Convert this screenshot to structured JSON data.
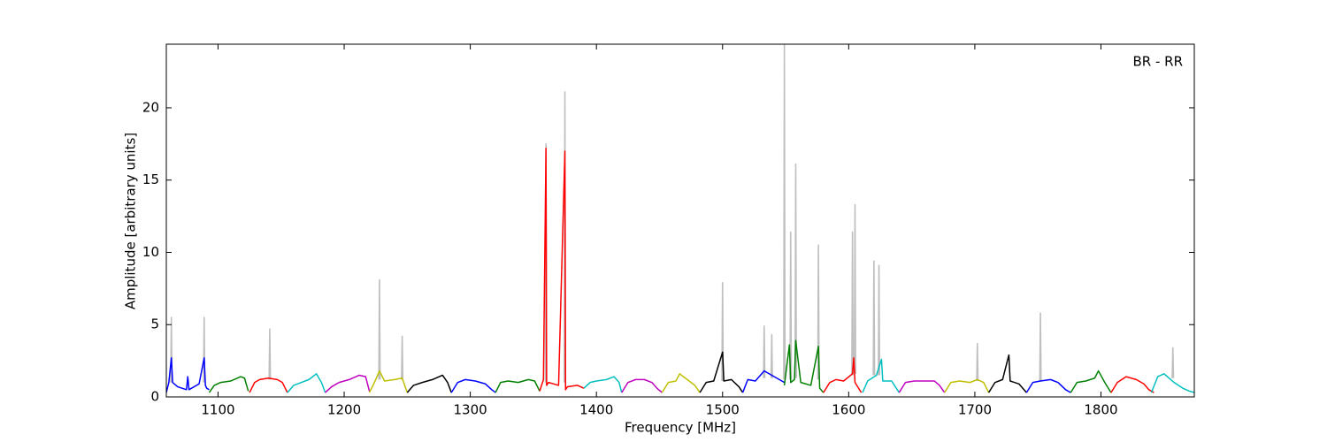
{
  "chart_data": {
    "type": "line",
    "xlabel": "Frequency [MHz]",
    "ylabel": "Amplitude [arbitrary units]",
    "annotation": "BR - RR",
    "xlim": [
      1059,
      1874
    ],
    "ylim": [
      0,
      24.4
    ],
    "xticks": [
      1100,
      1200,
      1300,
      1400,
      1500,
      1600,
      1700,
      1800
    ],
    "yticks": [
      0,
      5,
      10,
      15,
      20
    ],
    "series": [
      {
        "color": "#bfbfbf",
        "x": [
          1062.5,
          1063,
          1063.5,
          1070,
          1088.5,
          1089,
          1089.5,
          1110,
          1140.5,
          1141,
          1141.5,
          1200,
          1227.5,
          1228,
          1228.5,
          1240,
          1245.5,
          1246,
          1246.5,
          1300,
          1359.5,
          1360,
          1360.5,
          1368,
          1374.5,
          1375,
          1375.5,
          1450,
          1499.5,
          1500,
          1500.5,
          1520,
          1532.5,
          1533,
          1533.5,
          1536,
          1538.5,
          1539,
          1539.5,
          1545,
          1548.5,
          1549,
          1549.5,
          1551,
          1553.5,
          1554,
          1554.5,
          1556,
          1557.5,
          1558,
          1558.5,
          1570,
          1575.5,
          1576,
          1576.5,
          1590,
          1602.5,
          1603,
          1603.5,
          1604,
          1604.5,
          1605,
          1605.5,
          1612,
          1619.5,
          1620,
          1620.5,
          1622,
          1623.5,
          1624,
          1624.5,
          1680,
          1701.5,
          1702,
          1702.5,
          1730,
          1751.5,
          1752,
          1752.5,
          1800,
          1856.5,
          1857,
          1857.5
        ],
        "values": [
          1.0,
          5.5,
          1.0,
          null,
          1.0,
          5.5,
          1.0,
          null,
          1.2,
          4.7,
          1.2,
          null,
          1.2,
          8.1,
          1.2,
          null,
          1.2,
          4.2,
          1.2,
          null,
          1.0,
          17.5,
          1.0,
          null,
          1.0,
          21.1,
          1.0,
          null,
          1.1,
          7.9,
          1.1,
          null,
          1.3,
          4.9,
          1.3,
          null,
          1.3,
          4.3,
          1.3,
          null,
          1.2,
          24.4,
          1.2,
          null,
          1.2,
          11.4,
          1.2,
          null,
          1.3,
          16.1,
          1.3,
          null,
          1.2,
          10.5,
          1.2,
          null,
          1.5,
          11.4,
          1.5,
          null,
          1.6,
          13.3,
          1.6,
          null,
          1.5,
          9.4,
          1.5,
          null,
          1.5,
          9.1,
          1.5,
          null,
          1.1,
          3.7,
          1.1,
          null,
          1.1,
          5.8,
          1.1,
          null,
          1.3,
          3.4,
          1.3
        ]
      },
      {
        "color": "#0000ff",
        "x": [
          1059,
          1061,
          1063,
          1064,
          1068,
          1075,
          1076,
          1077,
          1085,
          1089,
          1090,
          1091,
          1093
        ],
        "values": [
          0.3,
          1.0,
          2.7,
          1.0,
          0.7,
          0.5,
          1.4,
          0.5,
          0.9,
          2.7,
          0.8,
          0.6,
          0.5
        ]
      },
      {
        "color": "#008000",
        "x": [
          1093,
          1097,
          1102,
          1110,
          1118,
          1121,
          1124
        ],
        "values": [
          0.3,
          0.8,
          1.0,
          1.1,
          1.4,
          1.3,
          0.4
        ]
      },
      {
        "color": "#ff0000",
        "x": [
          1125,
          1129,
          1133,
          1140,
          1147,
          1151,
          1155
        ],
        "values": [
          0.3,
          1.0,
          1.2,
          1.3,
          1.2,
          1.0,
          0.3
        ]
      },
      {
        "color": "#00bfbf",
        "x": [
          1155,
          1160,
          1166,
          1172,
          1178,
          1182,
          1185
        ],
        "values": [
          0.3,
          0.8,
          1.0,
          1.2,
          1.6,
          1.0,
          0.3
        ]
      },
      {
        "color": "#bf00bf",
        "x": [
          1185,
          1190,
          1196,
          1204,
          1212,
          1217,
          1220
        ],
        "values": [
          0.3,
          0.7,
          1.0,
          1.2,
          1.5,
          1.4,
          0.4
        ]
      },
      {
        "color": "#bfbf00",
        "x": [
          1220,
          1224,
          1228,
          1232,
          1240,
          1246,
          1250
        ],
        "values": [
          0.3,
          1.0,
          1.8,
          1.1,
          1.2,
          1.3,
          0.3
        ]
      },
      {
        "color": "#000000",
        "x": [
          1250,
          1255,
          1262,
          1270,
          1278,
          1282,
          1285
        ],
        "values": [
          0.3,
          0.8,
          1.0,
          1.2,
          1.5,
          1.0,
          0.3
        ]
      },
      {
        "color": "#0000ff",
        "x": [
          1285,
          1290,
          1296,
          1304,
          1312,
          1317,
          1320
        ],
        "values": [
          0.3,
          1.0,
          1.2,
          1.1,
          0.9,
          0.5,
          0.3
        ]
      },
      {
        "color": "#008000",
        "x": [
          1320,
          1324,
          1330,
          1338,
          1346,
          1351,
          1355
        ],
        "values": [
          0.3,
          1.0,
          1.1,
          1.0,
          1.2,
          1.1,
          0.4
        ]
      },
      {
        "color": "#ff0000",
        "x": [
          1355,
          1358,
          1360,
          1360.5,
          1362,
          1370,
          1375,
          1375.5,
          1377,
          1385,
          1390
        ],
        "values": [
          0.4,
          1.2,
          17.2,
          0.8,
          1.0,
          0.8,
          17.0,
          0.5,
          0.7,
          0.8,
          0.6
        ]
      },
      {
        "color": "#00bfbf",
        "x": [
          1390,
          1395,
          1400,
          1408,
          1414,
          1418,
          1420
        ],
        "values": [
          0.6,
          1.0,
          1.1,
          1.2,
          1.4,
          1.0,
          0.3
        ]
      },
      {
        "color": "#bf00bf",
        "x": [
          1420,
          1425,
          1431,
          1438,
          1444,
          1448,
          1452
        ],
        "values": [
          0.3,
          1.0,
          1.2,
          1.2,
          1.0,
          0.6,
          0.3
        ]
      },
      {
        "color": "#bfbf00",
        "x": [
          1452,
          1457,
          1463,
          1466,
          1472,
          1478,
          1482
        ],
        "values": [
          0.3,
          1.0,
          1.1,
          1.6,
          1.2,
          0.8,
          0.3
        ]
      },
      {
        "color": "#000000",
        "x": [
          1482,
          1487,
          1493,
          1500,
          1501,
          1507,
          1513,
          1516
        ],
        "values": [
          0.3,
          1.0,
          1.1,
          3.1,
          1.1,
          1.2,
          0.7,
          0.3
        ]
      },
      {
        "color": "#0000ff",
        "x": [
          1516,
          1520,
          1526,
          1533,
          1539,
          1545,
          1549
        ],
        "values": [
          0.3,
          1.2,
          1.1,
          1.8,
          1.5,
          1.2,
          1.0
        ]
      },
      {
        "color": "#008000",
        "x": [
          1549,
          1553,
          1554,
          1557,
          1558,
          1562,
          1570,
          1576,
          1577,
          1580
        ],
        "values": [
          0.8,
          3.6,
          1.0,
          1.2,
          3.9,
          1.0,
          0.8,
          3.5,
          0.6,
          0.3
        ]
      },
      {
        "color": "#ff0000",
        "x": [
          1580,
          1585,
          1590,
          1596,
          1603,
          1604,
          1605,
          1610
        ],
        "values": [
          0.3,
          1.0,
          1.2,
          1.1,
          1.6,
          2.7,
          1.0,
          0.3
        ]
      },
      {
        "color": "#00bfbf",
        "x": [
          1611,
          1615,
          1622,
          1626,
          1627,
          1634,
          1640
        ],
        "values": [
          0.3,
          1.1,
          1.5,
          2.6,
          1.1,
          1.1,
          0.3
        ]
      },
      {
        "color": "#bf00bf",
        "x": [
          1640,
          1645,
          1652,
          1660,
          1668,
          1672,
          1676
        ],
        "values": [
          0.3,
          1.0,
          1.1,
          1.1,
          1.1,
          0.8,
          0.3
        ]
      },
      {
        "color": "#bfbf00",
        "x": [
          1676,
          1681,
          1688,
          1696,
          1702,
          1707,
          1711
        ],
        "values": [
          0.3,
          1.0,
          1.1,
          1.0,
          1.2,
          1.0,
          0.3
        ]
      },
      {
        "color": "#000000",
        "x": [
          1711,
          1716,
          1722,
          1727,
          1728,
          1735,
          1741
        ],
        "values": [
          0.3,
          1.0,
          1.2,
          2.9,
          1.1,
          0.9,
          0.3
        ]
      },
      {
        "color": "#0000ff",
        "x": [
          1741,
          1746,
          1752,
          1760,
          1766,
          1772,
          1776
        ],
        "values": [
          0.3,
          1.0,
          1.1,
          1.2,
          1.0,
          0.5,
          0.3
        ]
      },
      {
        "color": "#008000",
        "x": [
          1776,
          1781,
          1788,
          1795,
          1798,
          1803,
          1808
        ],
        "values": [
          0.3,
          1.0,
          1.1,
          1.3,
          1.8,
          1.0,
          0.3
        ]
      },
      {
        "color": "#ff0000",
        "x": [
          1808,
          1813,
          1820,
          1828,
          1834,
          1838,
          1842
        ],
        "values": [
          0.3,
          1.0,
          1.4,
          1.2,
          0.9,
          0.5,
          0.3
        ]
      },
      {
        "color": "#00bfbf",
        "x": [
          1840,
          1845,
          1850,
          1858,
          1865,
          1870,
          1874
        ],
        "values": [
          0.3,
          1.4,
          1.6,
          1.0,
          0.6,
          0.4,
          0.3
        ]
      }
    ]
  }
}
